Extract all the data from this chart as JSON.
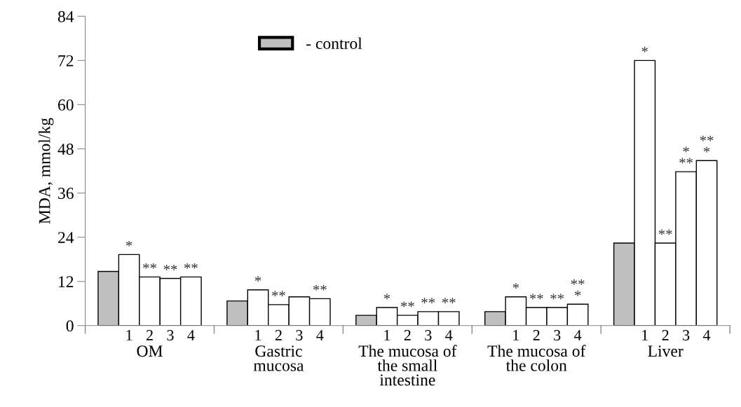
{
  "chart_data": {
    "type": "bar",
    "ylabel": "MDA, mmol/kg",
    "categories": [
      "OM",
      "Gastric\nmucosa",
      "The mucosa of\nthe small\nintestine",
      "The mucosa of\nthe colon",
      "Liver"
    ],
    "series": [
      {
        "name": "- control",
        "color": "#c0c0c0",
        "values": [
          14.7,
          6.7,
          2.8,
          3.8,
          22.4
        ]
      },
      {
        "name": "1",
        "color": "#ffffff",
        "values": [
          19.3,
          9.7,
          4.9,
          7.8,
          72
        ],
        "value_labels": [
          "*",
          "*",
          "*",
          "*",
          "*"
        ]
      },
      {
        "name": "2",
        "color": "#ffffff",
        "values": [
          13.2,
          5.7,
          2.8,
          4.9,
          22.4
        ],
        "value_labels": [
          "**",
          "**",
          "**",
          "**",
          "**"
        ]
      },
      {
        "name": "3",
        "color": "#ffffff",
        "values": [
          12.8,
          7.8,
          3.8,
          4.9,
          41.8
        ],
        "value_labels": [
          "**",
          null,
          "**",
          "**",
          "*\n**"
        ]
      },
      {
        "name": "4",
        "color": "#ffffff",
        "values": [
          13.2,
          7.3,
          3.8,
          5.8,
          44.8
        ],
        "value_labels": [
          "**",
          "**",
          "**",
          "**\n*",
          "**\n*"
        ]
      }
    ],
    "ylim": [
      0,
      84
    ],
    "yticks": [
      0,
      12,
      24,
      36,
      48,
      60,
      72,
      84
    ],
    "grid": false,
    "legend": "top"
  }
}
